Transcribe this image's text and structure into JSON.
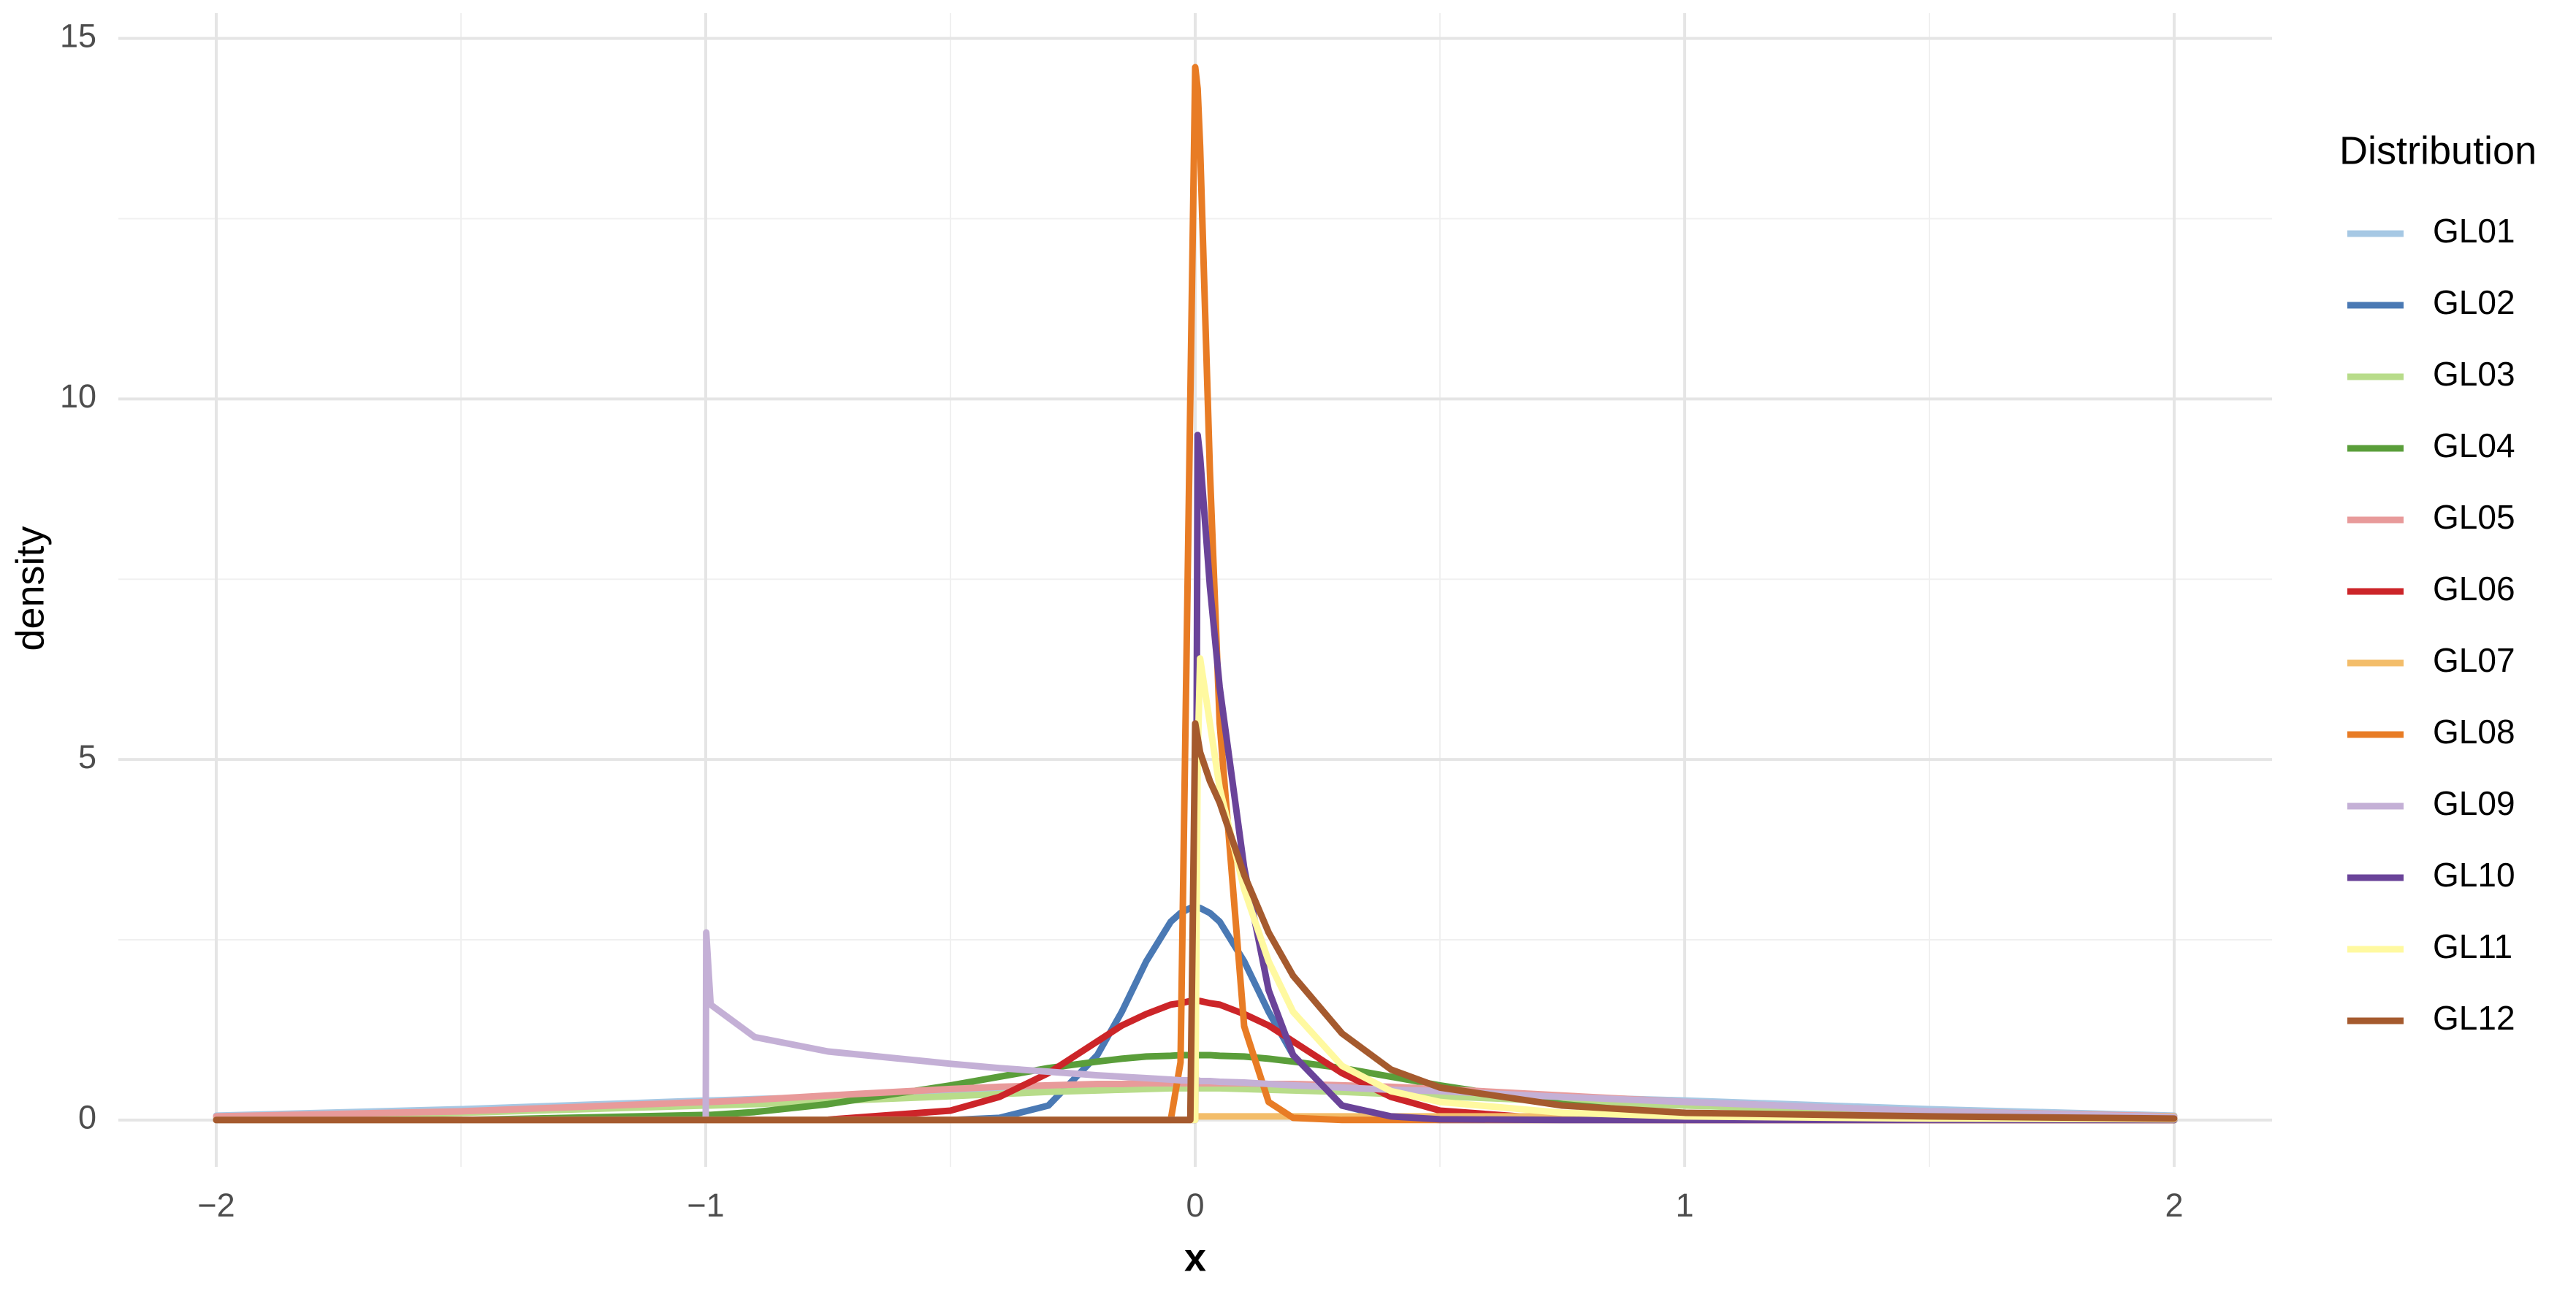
{
  "chart_data": {
    "type": "line",
    "x_label": "x",
    "y_label": "density",
    "legend_title": "Distribution",
    "legend_position": "right",
    "grid": true,
    "xlim": [
      -2.2,
      2.2
    ],
    "ylim": [
      -0.65,
      15.35
    ],
    "xticks": [
      {
        "value": -2,
        "label": "−2"
      },
      {
        "value": -1,
        "label": "−1"
      },
      0,
      1,
      2
    ],
    "yticks": [
      0,
      5,
      10,
      15
    ],
    "x_minor_grid": [
      -1.5,
      -0.5,
      0.5,
      1.5
    ],
    "y_minor_grid": [
      2.5,
      7.5,
      12.5
    ],
    "x": [
      -2,
      -1.5,
      -1,
      -0.999,
      -0.99,
      -0.9,
      -0.75,
      -0.5,
      -0.4,
      -0.3,
      -0.2,
      -0.15,
      -0.1,
      -0.05,
      -0.03,
      -0.01,
      0,
      0.005,
      0.01,
      0.03,
      0.05,
      0.1,
      0.15,
      0.2,
      0.3,
      0.4,
      0.5,
      0.75,
      1,
      1.5,
      2
    ],
    "series": [
      {
        "name": "GL01",
        "color": "#a6c8e4",
        "values": [
          0.06,
          0.15,
          0.27,
          0.27,
          0.27,
          0.29,
          0.32,
          0.37,
          0.39,
          0.41,
          0.43,
          0.44,
          0.44,
          0.45,
          0.45,
          0.45,
          0.45,
          0.45,
          0.45,
          0.45,
          0.45,
          0.44,
          0.44,
          0.43,
          0.41,
          0.39,
          0.37,
          0.32,
          0.27,
          0.15,
          0.06
        ]
      },
      {
        "name": "GL02",
        "color": "#4a79b4",
        "values": [
          0,
          0,
          0,
          0,
          0,
          0,
          0,
          0,
          0.03,
          0.2,
          0.9,
          1.5,
          2.2,
          2.75,
          2.87,
          2.94,
          2.95,
          2.95,
          2.94,
          2.87,
          2.75,
          2.2,
          1.5,
          0.9,
          0.2,
          0.03,
          0,
          0,
          0,
          0,
          0
        ]
      },
      {
        "name": "GL03",
        "color": "#b8dc8a",
        "values": [
          0.03,
          0.1,
          0.2,
          0.2,
          0.2,
          0.22,
          0.26,
          0.33,
          0.36,
          0.39,
          0.41,
          0.42,
          0.43,
          0.44,
          0.44,
          0.44,
          0.44,
          0.44,
          0.44,
          0.44,
          0.44,
          0.43,
          0.42,
          0.41,
          0.39,
          0.36,
          0.33,
          0.26,
          0.2,
          0.1,
          0.03
        ]
      },
      {
        "name": "GL04",
        "color": "#5a9e3a",
        "values": [
          0,
          0,
          0.07,
          0.07,
          0.07,
          0.11,
          0.22,
          0.48,
          0.6,
          0.72,
          0.81,
          0.85,
          0.88,
          0.89,
          0.9,
          0.9,
          0.9,
          0.9,
          0.9,
          0.9,
          0.89,
          0.88,
          0.85,
          0.81,
          0.72,
          0.6,
          0.48,
          0.22,
          0.07,
          0,
          0
        ]
      },
      {
        "name": "GL05",
        "color": "#e89a9a",
        "values": [
          0.05,
          0.12,
          0.25,
          0.25,
          0.25,
          0.28,
          0.34,
          0.43,
          0.46,
          0.48,
          0.5,
          0.5,
          0.51,
          0.51,
          0.51,
          0.51,
          0.51,
          0.51,
          0.51,
          0.51,
          0.51,
          0.51,
          0.5,
          0.5,
          0.48,
          0.46,
          0.43,
          0.34,
          0.25,
          0.12,
          0.05
        ]
      },
      {
        "name": "GL06",
        "color": "#cc2529",
        "values": [
          0,
          0,
          0,
          0,
          0,
          0,
          0.005,
          0.13,
          0.32,
          0.65,
          1.09,
          1.31,
          1.47,
          1.6,
          1.62,
          1.65,
          1.65,
          1.65,
          1.65,
          1.62,
          1.6,
          1.47,
          1.31,
          1.09,
          0.65,
          0.32,
          0.13,
          0.005,
          0,
          0,
          0
        ]
      },
      {
        "name": "GL07",
        "color": "#f3bd6a",
        "values": [
          0,
          0,
          0,
          0,
          0,
          0,
          0,
          0,
          0,
          0,
          0,
          0,
          0,
          0,
          0,
          0,
          0.05,
          0.05,
          0.05,
          0.05,
          0.05,
          0.05,
          0.05,
          0.05,
          0.05,
          0.05,
          0.05,
          0.05,
          0.05,
          0.05,
          0.05
        ]
      },
      {
        "name": "GL08",
        "color": "#e87c25",
        "values": [
          0,
          0,
          0,
          0,
          0,
          0,
          0,
          0,
          0,
          0,
          0,
          0,
          0,
          0,
          0.8,
          10,
          14.6,
          14.3,
          13.5,
          9,
          5.5,
          1.3,
          0.25,
          0.03,
          0,
          0,
          0,
          0,
          0,
          0,
          0
        ]
      },
      {
        "name": "GL09",
        "color": "#c4b0d6",
        "values": [
          0,
          0,
          0,
          2.6,
          1.6,
          1.15,
          0.95,
          0.78,
          0.72,
          0.67,
          0.62,
          0.6,
          0.58,
          0.56,
          0.55,
          0.55,
          0.55,
          0.55,
          0.54,
          0.54,
          0.53,
          0.52,
          0.5,
          0.48,
          0.45,
          0.42,
          0.4,
          0.32,
          0.25,
          0.12,
          0.04
        ]
      },
      {
        "name": "GL10",
        "color": "#6a4399",
        "values": [
          0,
          0,
          0,
          0,
          0,
          0,
          0,
          0,
          0,
          0,
          0,
          0,
          0,
          0,
          0,
          0,
          0,
          9.5,
          9.2,
          7.4,
          6,
          3.5,
          1.8,
          0.9,
          0.2,
          0.05,
          0.01,
          0,
          0,
          0,
          0
        ]
      },
      {
        "name": "GL11",
        "color": "#fff9a0",
        "values": [
          0,
          0,
          0,
          0,
          0,
          0,
          0,
          0,
          0,
          0,
          0,
          0,
          0,
          0,
          0,
          0,
          0,
          5,
          6.4,
          5.5,
          4.6,
          3.2,
          2.2,
          1.5,
          0.75,
          0.4,
          0.25,
          0.1,
          0.05,
          0.02,
          0.01
        ]
      },
      {
        "name": "GL12",
        "color": "#a55a2e",
        "values": [
          0,
          0,
          0,
          0,
          0,
          0,
          0,
          0,
          0,
          0,
          0,
          0,
          0,
          0,
          0,
          0,
          5.5,
          5.3,
          5.1,
          4.7,
          4.4,
          3.4,
          2.6,
          2,
          1.2,
          0.7,
          0.45,
          0.2,
          0.1,
          0.05,
          0.02
        ]
      }
    ]
  }
}
